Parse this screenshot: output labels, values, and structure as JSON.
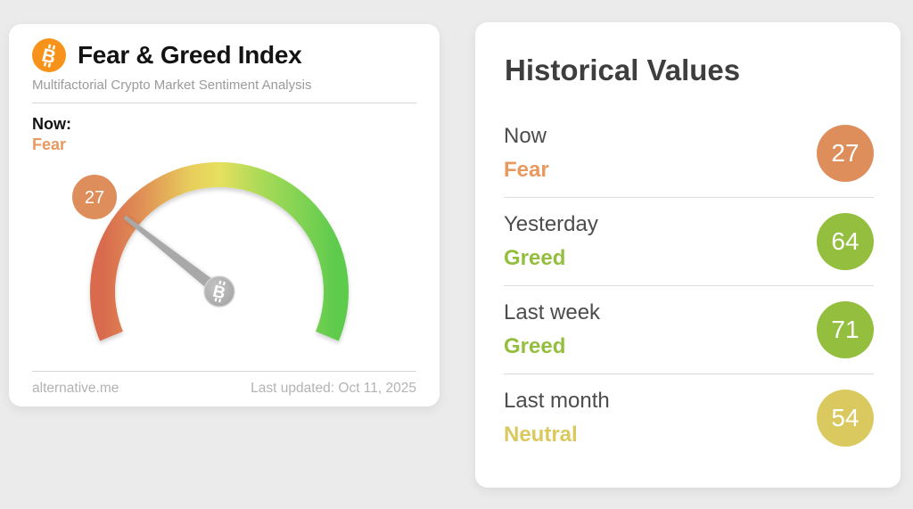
{
  "page": {
    "background_color": "#ebebeb"
  },
  "icons": {
    "bitcoin_color": "#f7931a"
  },
  "gauge_card": {
    "title": "Fear & Greed Index",
    "subtitle": "Multifactorial Crypto Market Sentiment Analysis",
    "now_label": "Now:",
    "now_sentiment": "Fear",
    "now_sentiment_color": "#e9995f",
    "gauge": {
      "value": 27,
      "min": 0,
      "max": 100,
      "span_degrees": 225,
      "badge_color": "#dd8e5a",
      "needle_color": "#a8a8a8",
      "arc_gradient": [
        "#d96a4e",
        "#e09356",
        "#e8ce5c",
        "#e6e05e",
        "#a9da57",
        "#5ecb4e"
      ]
    },
    "footer": {
      "source": "alternative.me",
      "last_updated": "Last updated: Oct 11, 2025"
    }
  },
  "history_card": {
    "title": "Historical Values",
    "rows": [
      {
        "label": "Now",
        "sentiment": "Fear",
        "value": "27",
        "badge_color": "#dd8e5a",
        "sentiment_color": "#e8995f"
      },
      {
        "label": "Yesterday",
        "sentiment": "Greed",
        "value": "64",
        "badge_color": "#94bf3e",
        "sentiment_color": "#94bf3e"
      },
      {
        "label": "Last week",
        "sentiment": "Greed",
        "value": "71",
        "badge_color": "#94bf3e",
        "sentiment_color": "#94bf3e"
      },
      {
        "label": "Last month",
        "sentiment": "Neutral",
        "value": "54",
        "badge_color": "#d9c95f",
        "sentiment_color": "#d9c95f"
      }
    ]
  },
  "chart_data": {
    "type": "gauge",
    "title": "Fear & Greed Index",
    "value": 27,
    "range": [
      0,
      100
    ],
    "classification": "Fear",
    "history": [
      {
        "period": "Now",
        "value": 27,
        "classification": "Fear"
      },
      {
        "period": "Yesterday",
        "value": 64,
        "classification": "Greed"
      },
      {
        "period": "Last week",
        "value": 71,
        "classification": "Greed"
      },
      {
        "period": "Last month",
        "value": 54,
        "classification": "Neutral"
      }
    ]
  }
}
